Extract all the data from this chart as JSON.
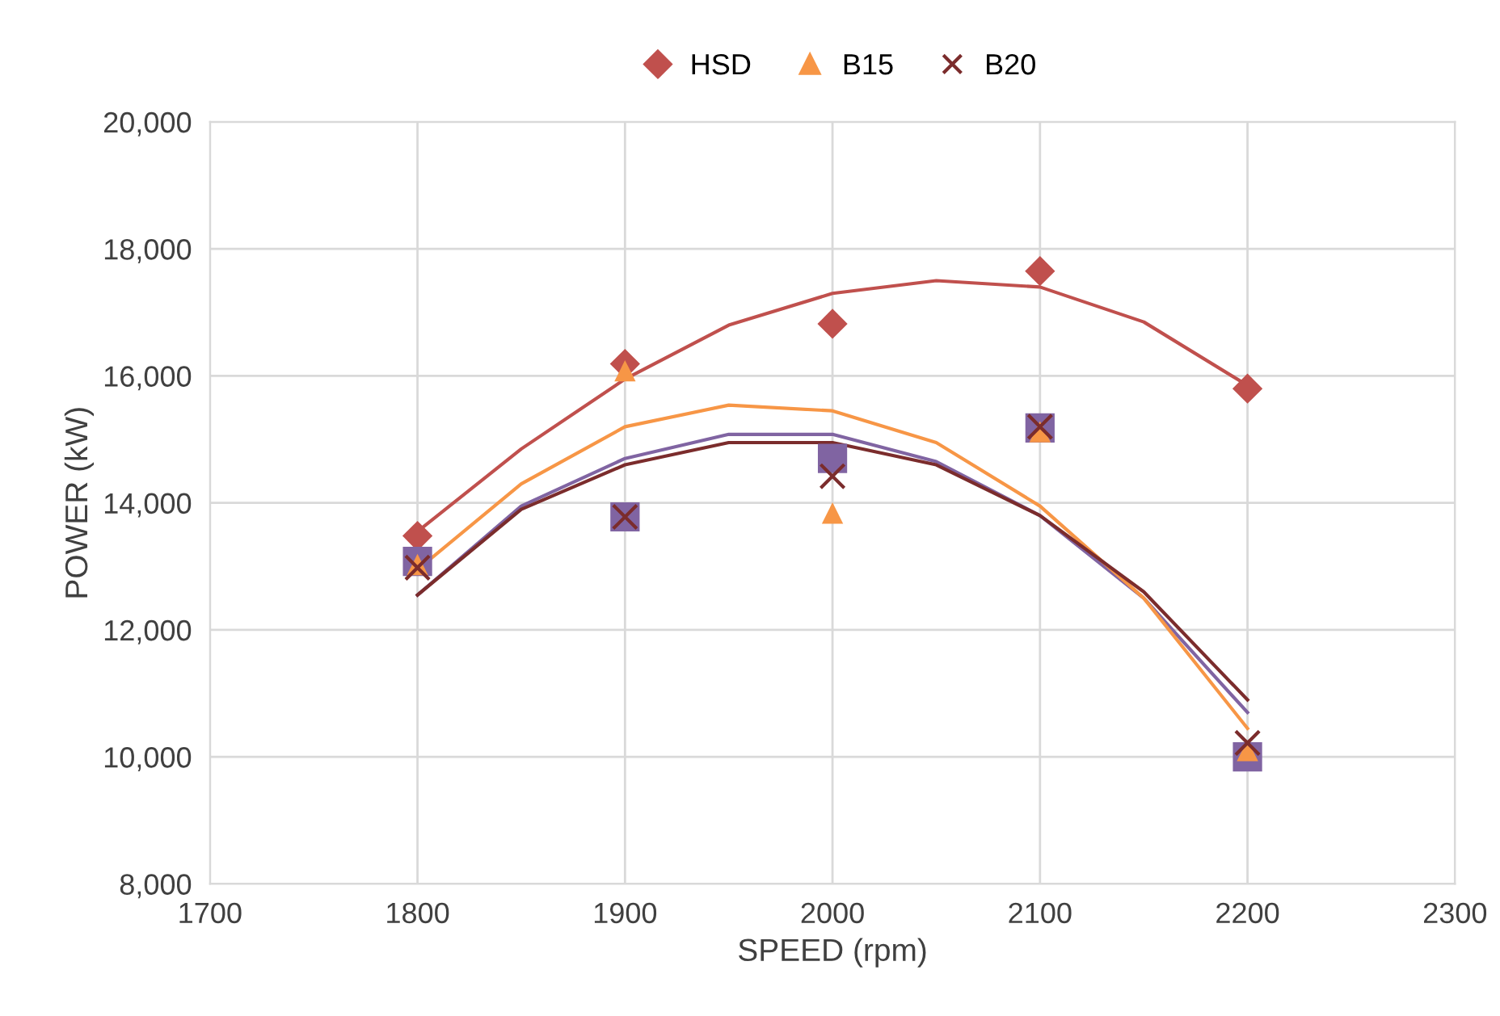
{
  "chart_data": {
    "type": "scatter",
    "xlabel": "SPEED (rpm)",
    "ylabel": "POWER (kW)",
    "x": [
      1800,
      1900,
      2000,
      2100,
      2200
    ],
    "series": [
      {
        "name": "HSD",
        "color": "#c0504d",
        "marker": "diamond",
        "values": [
          13480,
          16190,
          16820,
          17650,
          15800
        ]
      },
      {
        "color": "#8064a2",
        "marker": "square",
        "values": [
          13080,
          13780,
          14700,
          15180,
          10000
        ]
      },
      {
        "name": "B15",
        "color": "#f79646",
        "marker": "triangle",
        "values": [
          13030,
          16080,
          13840,
          15120,
          10100
        ]
      },
      {
        "name": "B20",
        "color": "#7b2c2c",
        "marker": "cross",
        "values": [
          12980,
          13780,
          14420,
          15200,
          10220
        ]
      },
      {
        "type": "line",
        "color": "#c0504d",
        "x": [
          1800,
          1850,
          1900,
          1950,
          2000,
          2050,
          2100,
          2150,
          2200
        ],
        "values": [
          13550,
          14850,
          15950,
          16800,
          17300,
          17500,
          17400,
          16850,
          15850
        ]
      },
      {
        "type": "line",
        "color": "#8064a2",
        "x": [
          1800,
          1850,
          1900,
          1950,
          2000,
          2050,
          2100,
          2150,
          2200
        ],
        "values": [
          12550,
          13950,
          14700,
          15080,
          15080,
          14650,
          13800,
          12500,
          10700
        ]
      },
      {
        "type": "line",
        "color": "#f79646",
        "x": [
          1800,
          1850,
          1900,
          1950,
          2000,
          2050,
          2100,
          2150,
          2200
        ],
        "values": [
          12950,
          14300,
          15200,
          15540,
          15450,
          14950,
          13950,
          12500,
          10450
        ]
      },
      {
        "type": "line",
        "color": "#7b2c2c",
        "x": [
          1800,
          1850,
          1900,
          1950,
          2000,
          2050,
          2100,
          2150,
          2200
        ],
        "values": [
          12550,
          13900,
          14600,
          14950,
          14950,
          14600,
          13800,
          12600,
          10900
        ]
      }
    ],
    "xlim": [
      1700,
      2300
    ],
    "xticks": [
      1700,
      1800,
      1900,
      2000,
      2100,
      2200,
      2300
    ],
    "ylim": [
      8000,
      20000
    ],
    "yticks": [
      {
        "value": 8000,
        "label": "8,000"
      },
      {
        "value": 10000,
        "label": "10,000"
      },
      {
        "value": 12000,
        "label": "12,000"
      },
      {
        "value": 14000,
        "label": "14,000"
      },
      {
        "value": 16000,
        "label": "16,000"
      },
      {
        "value": 18000,
        "label": "18,000"
      },
      {
        "value": 20000,
        "label": "20,000"
      }
    ],
    "grid": true,
    "legend": "top"
  }
}
